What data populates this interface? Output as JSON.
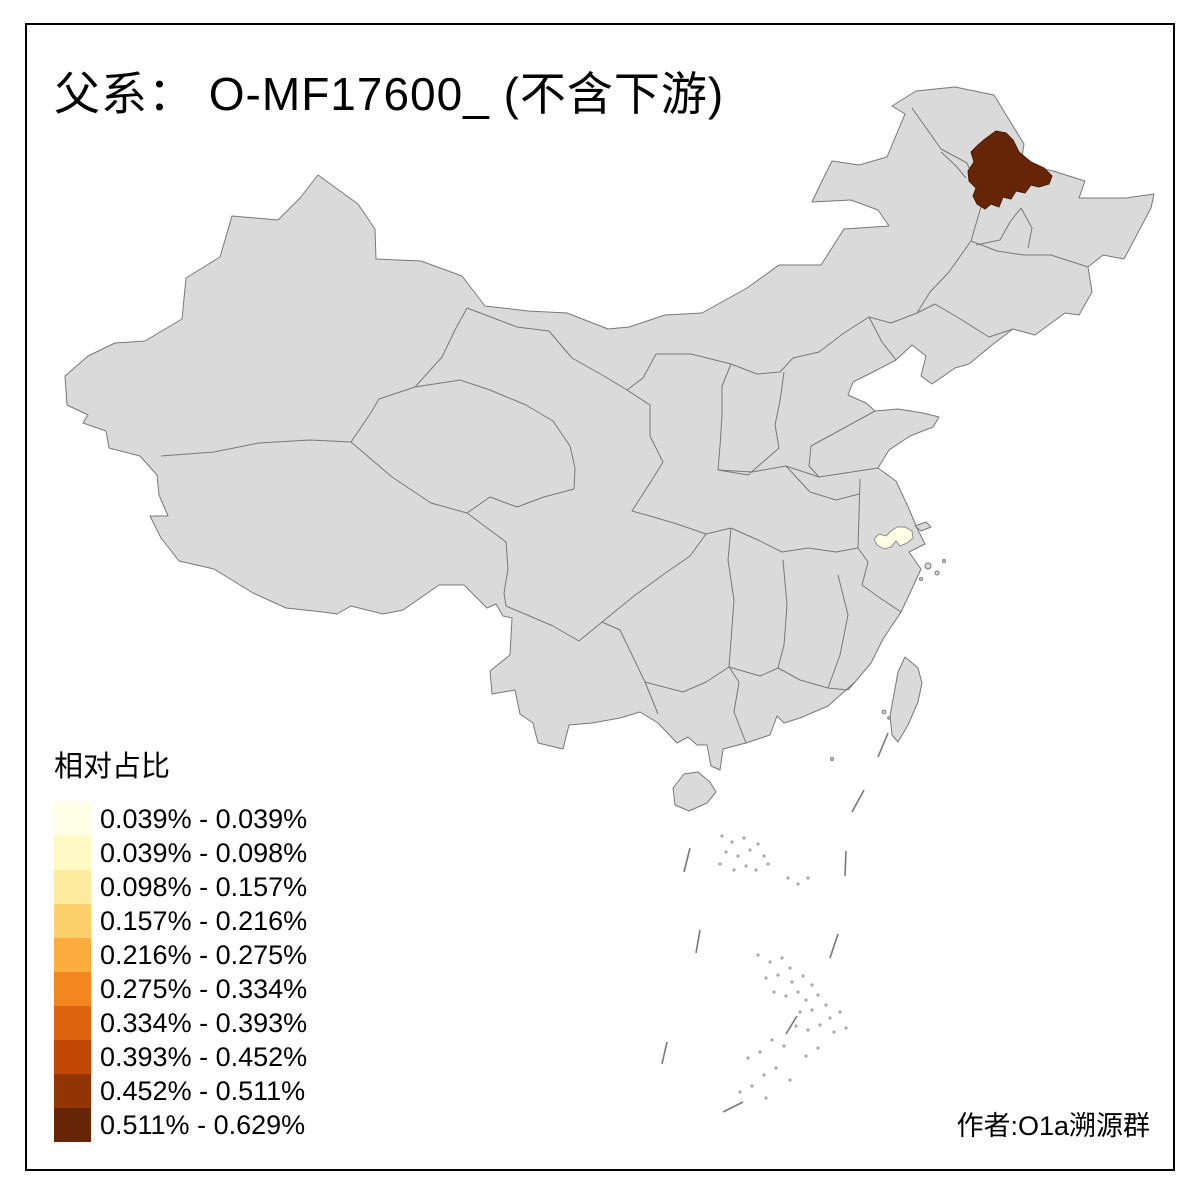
{
  "title": "父系： O-MF17600_ (不含下游)",
  "legend": {
    "title": "相对占比",
    "items": [
      {
        "label": "0.039% - 0.039%",
        "color": "#FFFFE5"
      },
      {
        "label": "0.039% - 0.098%",
        "color": "#FFF9C6"
      },
      {
        "label": "0.098% - 0.157%",
        "color": "#FEEC9E"
      },
      {
        "label": "0.157% - 0.216%",
        "color": "#FDD06E"
      },
      {
        "label": "0.216% - 0.275%",
        "color": "#FBAD3E"
      },
      {
        "label": "0.275% - 0.334%",
        "color": "#F48620"
      },
      {
        "label": "0.334% - 0.393%",
        "color": "#DF640F"
      },
      {
        "label": "0.393% - 0.452%",
        "color": "#C24806"
      },
      {
        "label": "0.452% - 0.511%",
        "color": "#933404"
      },
      {
        "label": "0.511% - 0.629%",
        "color": "#662506"
      }
    ]
  },
  "attribution": "作者:O1a溯源群",
  "map": {
    "land_fill": "#DADADA",
    "border_color": "#787878",
    "background": "#FFFFFF",
    "frame_color": "#000000",
    "regions": [
      {
        "id": "northeast-highlight",
        "bin": "0.511% - 0.629%",
        "color": "#662506",
        "outline": "#4A1C05"
      },
      {
        "id": "east-highlight",
        "bin": "0.039% - 0.039%",
        "color": "#FFFFE5",
        "outline": "#8C8C8C"
      }
    ]
  }
}
